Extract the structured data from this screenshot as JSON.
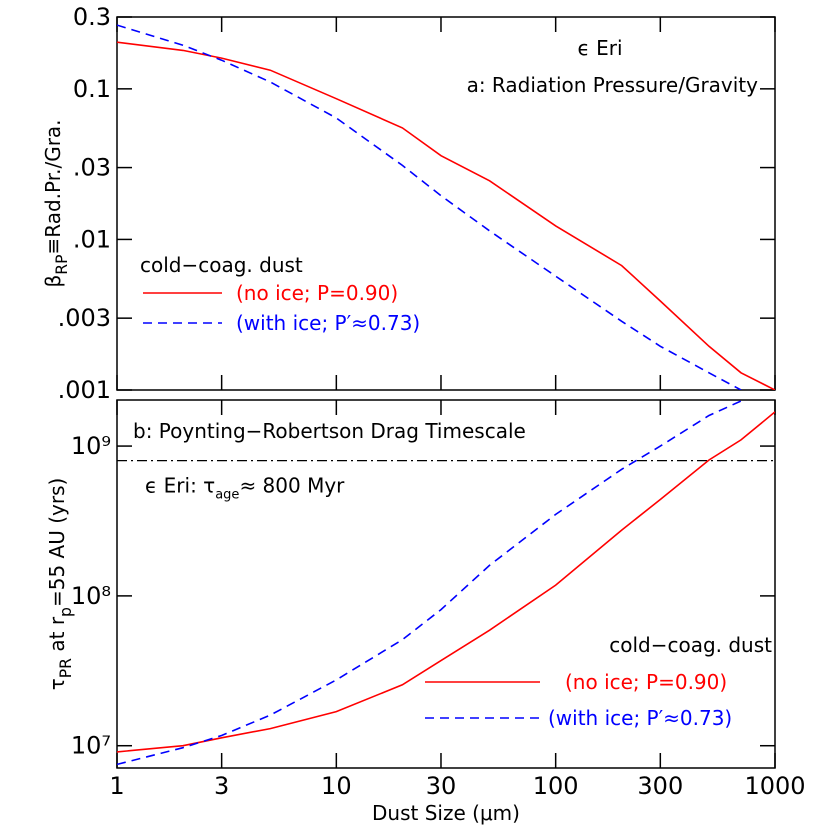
{
  "chart_data": [
    {
      "type": "line",
      "y_label": [
        "β",
        "RP",
        "≡Rad.Pr./Gra."
      ],
      "annotations": [
        "ϵ Eri",
        "a: Radiation Pressure/Gravity",
        "cold−coag. dust"
      ],
      "x": [
        1,
        2,
        3,
        5,
        10,
        20,
        30,
        50,
        100,
        200,
        300,
        500,
        700,
        1000
      ],
      "series": [
        {
          "name": "(no ice; P=0.90)",
          "color": "#ff0000",
          "style": "solid",
          "values": [
            0.204,
            0.18,
            0.16,
            0.133,
            0.086,
            0.055,
            0.036,
            0.0245,
            0.0123,
            0.0067,
            0.0039,
            0.00195,
            0.0013,
            0.001
          ]
        },
        {
          "name": "(with ice; P′≈0.73)",
          "color": "#0000ff",
          "style": "dashed",
          "values": [
            0.265,
            0.195,
            0.155,
            0.111,
            0.064,
            0.031,
            0.0195,
            0.0114,
            0.0057,
            0.00286,
            0.00195,
            0.0013,
            0.001,
            null
          ]
        }
      ],
      "xlim": [
        1,
        1000
      ],
      "ylim": [
        0.001,
        0.3
      ],
      "log_x": true,
      "log_y": true,
      "yticks": [
        {
          "value": 0.001,
          "label": ".001"
        },
        {
          "value": 0.003,
          "label": ".003"
        },
        {
          "value": 0.01,
          "label": ".01"
        },
        {
          "value": 0.03,
          "label": ".03"
        },
        0.1,
        0.3
      ],
      "legend": "lower left"
    },
    {
      "type": "line",
      "x_label": "Dust Size  (μm)",
      "y_label": [
        "τ",
        "PR",
        " at r",
        "p",
        "=55 AU (yrs)"
      ],
      "title_note": "b: Poynting−Robertson Drag Timescale",
      "hline": 800000000,
      "hline_label": [
        "ϵ Eri: τ",
        "age",
        "≈ 800 Myr"
      ],
      "annotations": [
        "cold−coag. dust"
      ],
      "x": [
        1,
        2,
        3,
        5,
        10,
        20,
        30,
        50,
        100,
        200,
        300,
        500,
        700,
        1000
      ],
      "series": [
        {
          "name": "(no ice; P=0.90)",
          "color": "#ff0000",
          "style": "solid",
          "values": [
            9100000,
            10000000,
            11300000,
            13000000,
            16900000,
            25500000,
            37000000,
            59000000,
            118000000,
            275000000,
            440000000,
            807000000,
            1100000000,
            1690000000
          ]
        },
        {
          "name": "(with ice; P′≈0.73)",
          "color": "#0000ff",
          "style": "dashed",
          "values": [
            7500000,
            9700000,
            11700000,
            16000000,
            27500000,
            51000000,
            81000000,
            160000000,
            350000000,
            700000000,
            1000000000,
            1600000000,
            2000000000,
            null
          ]
        }
      ],
      "xlim": [
        1,
        1000
      ],
      "ylim": [
        7100000,
        2030000000
      ],
      "log_x": true,
      "log_y": true,
      "xticks": [
        1,
        3,
        10,
        30,
        100,
        300,
        1000
      ],
      "yticks": [
        {
          "value": 10000000,
          "label": "10⁷"
        },
        {
          "value": 100000000,
          "label": "10⁸"
        },
        {
          "value": 1000000000,
          "label": "10⁹"
        }
      ],
      "legend": "lower right"
    }
  ]
}
